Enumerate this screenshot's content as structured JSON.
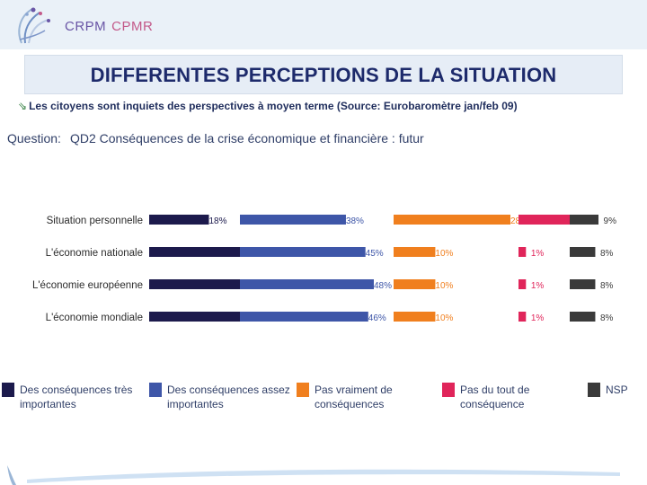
{
  "header": {
    "brand_primary": "CRPM",
    "brand_secondary": "CPMR",
    "title": "DIFFERENTES PERCEPTIONS DE LA SITUATION",
    "subtitle": "Les citoyens sont inquiets des perspectives à moyen terme (Source: Eurobaromètre jan/feb 09)",
    "question_label": "Question:",
    "question_text": "QD2 Conséquences de la crise économique et financière : futur"
  },
  "chart_data": {
    "type": "bar",
    "orientation": "horizontal",
    "stacked": false,
    "categories": [
      "Situation personnelle",
      "L'économie nationale",
      "L'économie européenne",
      "L'économie mondiale"
    ],
    "series": [
      {
        "name": "Des conséquences très importantes",
        "color": "#1c1a4c",
        "values": [
          18,
          36,
          33,
          35
        ]
      },
      {
        "name": "Des conséquences assez importantes",
        "color": "#3e56a8",
        "values": [
          38,
          45,
          48,
          46
        ]
      },
      {
        "name": "Pas vraiment de conséquences",
        "color": "#f07f1e",
        "values": [
          28,
          10,
          10,
          10
        ]
      },
      {
        "name": "Pas du tout de conséquence",
        "color": "#e0255a",
        "values": [
          7,
          1,
          1,
          1
        ]
      },
      {
        "name": "NSP",
        "color": "#3a3a3a",
        "values": [
          9,
          8,
          8,
          8
        ]
      }
    ],
    "unit": "%"
  }
}
